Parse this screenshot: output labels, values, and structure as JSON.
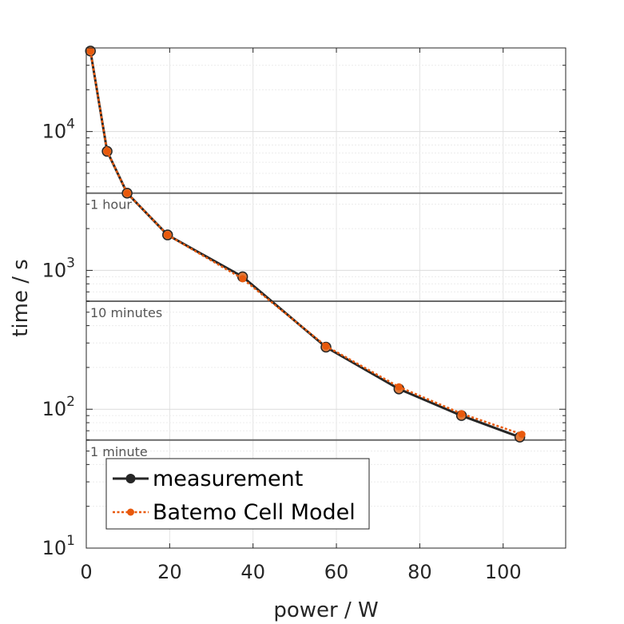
{
  "chart_data": {
    "type": "line",
    "title": "",
    "xlabel": "power / W",
    "ylabel": "time / s",
    "xlim": [
      0,
      115
    ],
    "ylim": [
      10,
      40000
    ],
    "yscale": "log",
    "grid": true,
    "x_ticks": [
      0,
      20,
      40,
      60,
      80,
      100
    ],
    "x_tick_labels": [
      "0",
      "20",
      "40",
      "60",
      "80",
      "100"
    ],
    "y_ticks": [
      10,
      100,
      1000,
      10000
    ],
    "y_tick_labels": [
      {
        "base": "10",
        "exp": "1"
      },
      {
        "base": "10",
        "exp": "2"
      },
      {
        "base": "10",
        "exp": "3"
      },
      {
        "base": "10",
        "exp": "4"
      }
    ],
    "reference_lines": [
      {
        "label": "1 hour",
        "y": 3600
      },
      {
        "label": "10 minutes",
        "y": 600
      },
      {
        "label": "1 minute",
        "y": 60
      }
    ],
    "legend_position": "bottom-left",
    "series": [
      {
        "name": "measurement",
        "color": "#262626",
        "line_style": "solid",
        "x": [
          1,
          5,
          9.8,
          19.5,
          37.5,
          57.5,
          75,
          90,
          104
        ],
        "y": [
          38000,
          7200,
          3600,
          1800,
          900,
          280,
          140,
          90,
          63
        ]
      },
      {
        "name": "Batemo Cell Model",
        "color": "#e8590c",
        "line_style": "dotted",
        "x": [
          1,
          5,
          9.8,
          19.5,
          37.5,
          57.5,
          75,
          90,
          104.5
        ],
        "y": [
          38000,
          7200,
          3600,
          1800,
          870,
          285,
          145,
          93,
          66
        ]
      }
    ]
  }
}
